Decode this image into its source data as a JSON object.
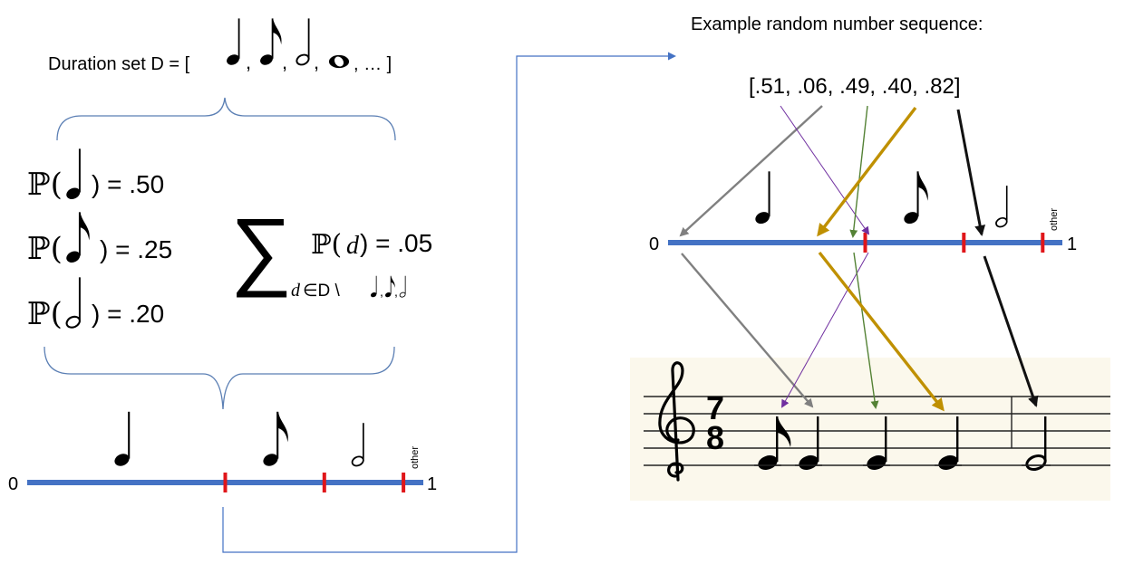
{
  "left": {
    "duration_set_label": "Duration set D = [",
    "duration_set_tail": ", … ]",
    "prob_quarter_value": ") = .50",
    "prob_eighth_value": ") = .25",
    "prob_half_value": ") = .20",
    "prob_prefix": "ℙ(",
    "sum_symbol": "∑",
    "sum_expr_prefix": "ℙ(",
    "sum_expr_var": "d",
    "sum_expr_value": ") = .05",
    "sum_subscript_var": "d",
    "sum_subscript_rest": "∈D \\",
    "line_zero": "0",
    "line_one": "1",
    "line_other": "other"
  },
  "right": {
    "title": "Example random number sequence:",
    "sequence": "[.51, .06, .49, .40, .82]",
    "line_zero": "0",
    "line_one": "1",
    "line_other": "other",
    "time_sig_top": "7",
    "time_sig_bottom": "8"
  },
  "probabilities": {
    "quarter": 0.5,
    "eighth": 0.25,
    "half": 0.2,
    "other": 0.05
  },
  "random_values": [
    0.51,
    0.06,
    0.49,
    0.4,
    0.82
  ],
  "colors": {
    "line_blue": "#4472C4",
    "tick_red": "#E0161A",
    "arrow_gray": "#808080",
    "arrow_purple": "#7030A0",
    "arrow_green": "#548235",
    "arrow_gold": "#BF9000",
    "arrow_black": "#111111",
    "bracket_blue": "#5B7FB4",
    "staff_bg": "#FBF8EC"
  },
  "icons": {
    "quarter": "quarter-note-icon",
    "eighth": "eighth-note-icon",
    "half": "half-note-icon",
    "whole": "whole-note-icon",
    "clef": "treble-clef-icon"
  }
}
